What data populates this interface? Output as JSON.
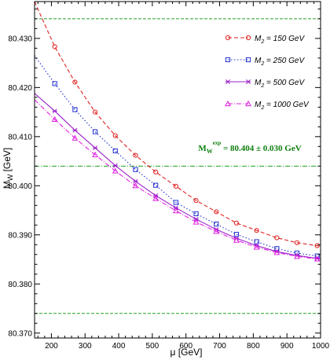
{
  "chart_data": {
    "type": "line",
    "xlabel": "μ [GeV]",
    "ylabel": "M",
    "ylabel_sub": "W",
    "ylabel_unit": " [GeV]",
    "xlim": [
      150,
      1000
    ],
    "ylim": [
      80.369,
      80.4375
    ],
    "xticks": [
      200,
      300,
      400,
      500,
      600,
      700,
      800,
      900,
      1000
    ],
    "yticks": [
      80.37,
      80.38,
      80.39,
      80.4,
      80.41,
      80.42,
      80.43
    ],
    "ytick_labels": [
      "80.370",
      "80.380",
      "80.390",
      "80.400",
      "80.410",
      "80.420",
      "80.430"
    ],
    "grid": false,
    "legend_position": "top-right",
    "series": [
      {
        "name": "M2 = 150 GeV",
        "label_main": "M",
        "label_sub": "2",
        "label_rest": " = 150 GeV",
        "color": "#e02020",
        "dash": "5,3",
        "marker": "circle",
        "x": [
          150,
          210,
          270,
          330,
          390,
          450,
          510,
          570,
          630,
          690,
          750,
          810,
          870,
          930,
          990,
          1000
        ],
        "y": [
          80.4375,
          80.4283,
          80.4211,
          80.415,
          80.4102,
          80.4062,
          80.4028,
          80.3999,
          80.397,
          80.3947,
          80.3924,
          80.3909,
          80.3894,
          80.3884,
          80.3878,
          80.3877
        ]
      },
      {
        "name": "M2 = 250 GeV",
        "label_main": "M",
        "label_sub": "2",
        "label_rest": " = 250 GeV",
        "color": "#2030d0",
        "dash": "1.5,2.5",
        "marker": "square",
        "x": [
          150,
          210,
          270,
          330,
          390,
          450,
          510,
          570,
          630,
          690,
          750,
          810,
          870,
          930,
          990,
          1000
        ],
        "y": [
          80.4265,
          80.4208,
          80.4155,
          80.411,
          80.4071,
          80.4033,
          80.4001,
          80.3966,
          80.3943,
          80.3922,
          80.3901,
          80.3886,
          80.3872,
          80.3863,
          80.3857,
          80.3856
        ]
      },
      {
        "name": "M2 = 500 GeV",
        "label_main": "M",
        "label_sub": "2",
        "label_rest": " = 500 GeV",
        "color": "#9a20c8",
        "dash": "",
        "marker": "star",
        "x": [
          150,
          210,
          270,
          330,
          390,
          450,
          510,
          570,
          630,
          690,
          750,
          810,
          870,
          930,
          990,
          1000
        ],
        "y": [
          80.4188,
          80.4152,
          80.4113,
          80.4077,
          80.4041,
          80.4009,
          80.398,
          80.3955,
          80.3932,
          80.3911,
          80.3893,
          80.3878,
          80.3866,
          80.3858,
          80.3852,
          80.3852
        ]
      },
      {
        "name": "M2 = 1000 GeV",
        "label_main": "M",
        "label_sub": "2",
        "label_rest": " = 1000 GeV",
        "color": "#e020e0",
        "dash": "6,2,1,2",
        "marker": "triangle",
        "x": [
          150,
          210,
          270,
          330,
          390,
          450,
          510,
          570,
          630,
          690,
          750,
          810,
          870,
          930,
          990,
          1000
        ],
        "y": [
          80.4175,
          80.4135,
          80.4097,
          80.4063,
          80.403,
          80.4,
          80.3974,
          80.3949,
          80.3926,
          80.3907,
          80.3889,
          80.3875,
          80.3864,
          80.3856,
          80.3851,
          80.3851
        ]
      }
    ],
    "reference_lines": [
      {
        "y": 80.434,
        "style": "dashed",
        "color": "#20a020"
      },
      {
        "y": 80.404,
        "style": "dashdot",
        "color": "#20a020"
      },
      {
        "y": 80.374,
        "style": "dashed",
        "color": "#20a020"
      }
    ],
    "annotation": {
      "main": "M",
      "sub": "W",
      "sup": "exp",
      "rest": " = 80.404 ± 0.030 GeV",
      "color": "#108010"
    }
  }
}
